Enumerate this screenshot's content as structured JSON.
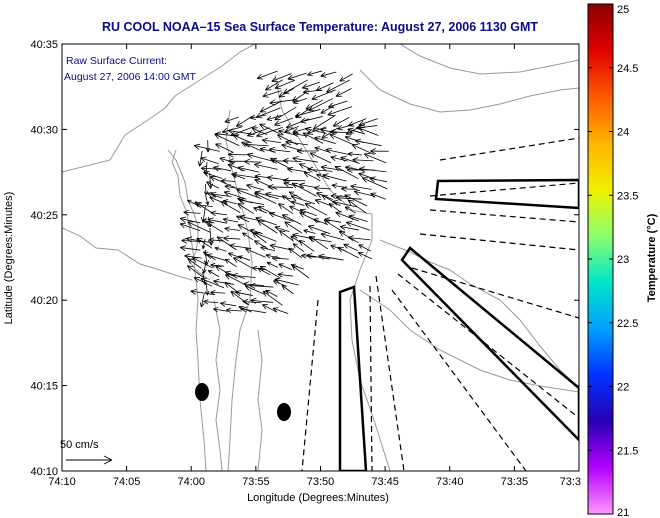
{
  "title": "RU COOL  NOAA–15  Sea Surface Temperature:  August 27, 2006 1130 GMT",
  "annotation": {
    "line1": "Raw Surface Current:",
    "line2": "August 27, 2006 14:00 GMT"
  },
  "axes": {
    "xlabel": "Longitude (Degrees:Minutes)",
    "ylabel": "Latitude (Degrees:Minutes)",
    "xticks": [
      "74:10",
      "74:05",
      "74:00",
      "73:55",
      "73:50",
      "73:45",
      "73:40",
      "73:35",
      "73:3"
    ],
    "yticks": [
      "40:35",
      "40:30",
      "40:25",
      "40:20",
      "40:15",
      "40:10"
    ]
  },
  "scale_label": "50 cm/s",
  "colorbar": {
    "label": "Temperature (°C)",
    "ticks": [
      "25",
      "24.5",
      "24",
      "23.5",
      "23",
      "22.5",
      "22",
      "21.5",
      "21"
    ],
    "colors": [
      "#8c0000",
      "#e00000",
      "#ff5a00",
      "#ffb400",
      "#f0f000",
      "#8cff6e",
      "#00e6c8",
      "#00a0ff",
      "#0032ff",
      "#2800b4",
      "#b400ff",
      "#ff96ff"
    ]
  },
  "colors": {
    "title": "#0a0a8c",
    "contour": "#9a9a9a"
  }
}
